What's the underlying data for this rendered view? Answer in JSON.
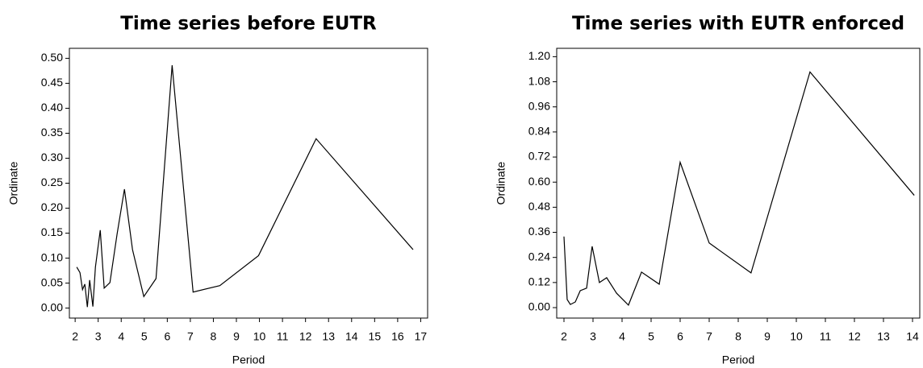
{
  "chart_data": [
    {
      "type": "line",
      "title": "Time series before EUTR",
      "x_label": "Period",
      "y_label": "Ordinate",
      "x": [
        2.07,
        2.21,
        2.32,
        2.42,
        2.53,
        2.63,
        2.77,
        2.88,
        3.09,
        3.26,
        3.51,
        3.82,
        4.14,
        4.49,
        4.98,
        5.51,
        6.21,
        7.12,
        8.28,
        9.96,
        12.46,
        16.67
      ],
      "series": [
        {
          "color": "#000000",
          "values": [
            0.082,
            0.071,
            0.037,
            0.048,
            0.002,
            0.056,
            0.003,
            0.082,
            0.156,
            0.04,
            0.051,
            0.148,
            0.238,
            0.117,
            0.023,
            0.059,
            0.486,
            0.032,
            0.045,
            0.105,
            0.339,
            0.117
          ]
        }
      ],
      "xlim": [
        1.75,
        17.3
      ],
      "xticks": [
        2,
        3,
        4,
        5,
        6,
        7,
        8,
        9,
        10,
        11,
        12,
        13,
        14,
        15,
        16,
        17
      ],
      "ylim": [
        -0.02,
        0.52
      ],
      "yticks": [
        {
          "value": 0,
          "label": "0.00"
        },
        0.05,
        {
          "value": 0.1,
          "label": "0.10"
        },
        0.15,
        {
          "value": 0.2,
          "label": "0.20"
        },
        0.25,
        {
          "value": 0.3,
          "label": "0.30"
        },
        0.35,
        {
          "value": 0.4,
          "label": "0.40"
        },
        0.45,
        {
          "value": 0.5,
          "label": "0.50"
        }
      ]
    },
    {
      "type": "line",
      "title": "Time series with EUTR enforced",
      "x_label": "Period",
      "y_label": "Ordinate",
      "x": [
        2.0,
        2.11,
        2.22,
        2.39,
        2.56,
        2.78,
        2.97,
        3.22,
        3.47,
        3.81,
        4.22,
        4.67,
        5.28,
        6.0,
        7.0,
        8.44,
        10.47,
        14.06
      ],
      "series": [
        {
          "color": "#000000",
          "values": [
            0.34,
            0.039,
            0.015,
            0.027,
            0.081,
            0.093,
            0.293,
            0.12,
            0.143,
            0.069,
            0.012,
            0.17,
            0.112,
            0.695,
            0.309,
            0.166,
            1.127,
            0.537
          ]
        }
      ],
      "xlim": [
        1.75,
        14.25
      ],
      "xticks": [
        2,
        3,
        4,
        5,
        6,
        7,
        8,
        9,
        10,
        11,
        12,
        13,
        14
      ],
      "ylim": [
        -0.05,
        1.24
      ],
      "yticks": [
        {
          "value": 0,
          "label": "0.00"
        },
        0.12,
        0.24,
        0.36,
        0.48,
        {
          "value": 0.6,
          "label": "0.60"
        },
        0.72,
        0.84,
        0.96,
        1.08,
        {
          "value": 1.2,
          "label": "1.20"
        }
      ]
    }
  ]
}
